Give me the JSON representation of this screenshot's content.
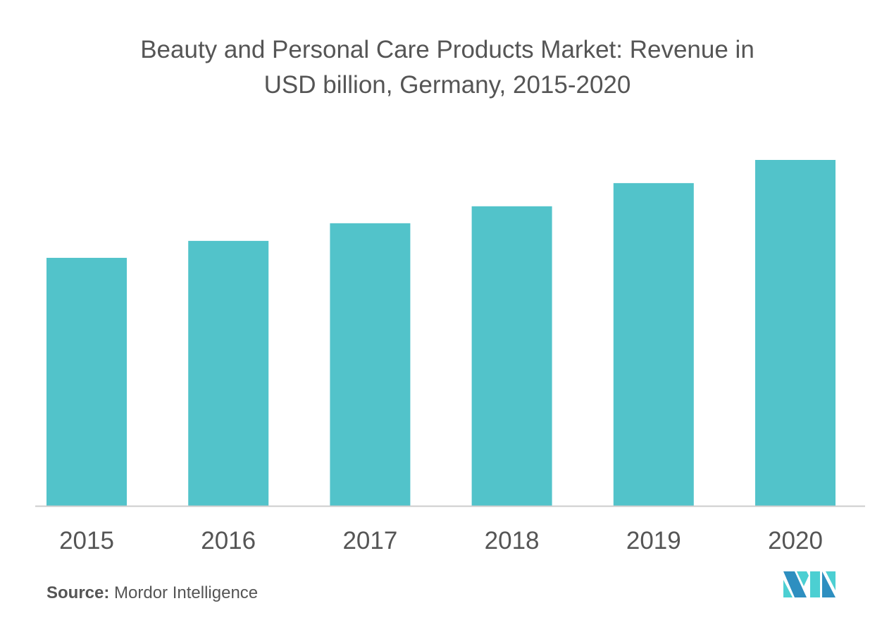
{
  "chart_data": {
    "type": "bar",
    "title_line1": "Beauty and Personal Care Products Market: Revenue in",
    "title_line2": "USD billion, Germany, 2015-2020",
    "categories": [
      "2015",
      "2016",
      "2017",
      "2018",
      "2019",
      "2020"
    ],
    "values": [
      71.7,
      76.6,
      81.7,
      86.6,
      93.3,
      100
    ],
    "value_note_hidden": null,
    "ylim": [
      0,
      100
    ],
    "grid": false,
    "y_axis_shown": false,
    "bar_color": "#52c3ca",
    "axis_color": "#cccccc"
  },
  "source": {
    "label": "Source:",
    "text": " Mordor Intelligence"
  },
  "logo": {
    "text": "MI",
    "colors": [
      "#2e8fc0",
      "#4ccfd2"
    ]
  }
}
